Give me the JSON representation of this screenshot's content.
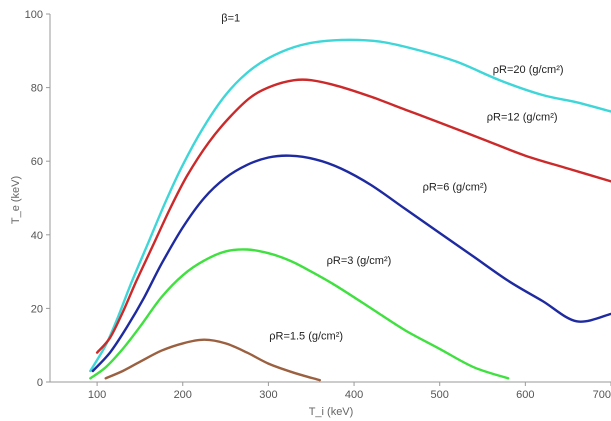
{
  "chart_data": {
    "type": "line",
    "title": "",
    "xlabel": "T_i (keV)",
    "ylabel": "T_e (keV)",
    "xlim": [
      45,
      700
    ],
    "ylim": [
      0,
      100
    ],
    "xticks": [
      100,
      200,
      300,
      400,
      500,
      600,
      700
    ],
    "yticks": [
      0,
      20,
      40,
      60,
      80,
      100
    ],
    "grid": false,
    "legend": "none",
    "annotations": [
      {
        "text": "β=1",
        "x": 245,
        "y": 98
      }
    ],
    "series": [
      {
        "name": "ρR=20 (g/cm²)",
        "color": "#3ed6d8",
        "label_pos": [
          562,
          84
        ],
        "points": [
          [
            92,
            3
          ],
          [
            110,
            10
          ],
          [
            125,
            18
          ],
          [
            140,
            27
          ],
          [
            160,
            38
          ],
          [
            180,
            49
          ],
          [
            200,
            59
          ],
          [
            225,
            69.5
          ],
          [
            250,
            78
          ],
          [
            275,
            84
          ],
          [
            300,
            88
          ],
          [
            330,
            91
          ],
          [
            360,
            92.5
          ],
          [
            395,
            93
          ],
          [
            430,
            92.5
          ],
          [
            470,
            90.5
          ],
          [
            520,
            87
          ],
          [
            570,
            82
          ],
          [
            620,
            78
          ],
          [
            660,
            76
          ],
          [
            700,
            73.5
          ]
        ]
      },
      {
        "name": "ρR=12 (g/cm²)",
        "color": "#cc2a2a",
        "label_pos": [
          555,
          71
        ],
        "points": [
          [
            100,
            8
          ],
          [
            115,
            12
          ],
          [
            130,
            19
          ],
          [
            145,
            27
          ],
          [
            165,
            37
          ],
          [
            185,
            47
          ],
          [
            205,
            56
          ],
          [
            230,
            65
          ],
          [
            255,
            72
          ],
          [
            280,
            77.5
          ],
          [
            305,
            80.5
          ],
          [
            330,
            82
          ],
          [
            350,
            82
          ],
          [
            380,
            80.5
          ],
          [
            420,
            77.5
          ],
          [
            460,
            74
          ],
          [
            500,
            70.5
          ],
          [
            550,
            66
          ],
          [
            600,
            61.5
          ],
          [
            650,
            58
          ],
          [
            700,
            54.5
          ]
        ]
      },
      {
        "name": "ρR=6 (g/cm²)",
        "color": "#1e2aa0",
        "label_pos": [
          480,
          52
        ],
        "points": [
          [
            95,
            3
          ],
          [
            115,
            8
          ],
          [
            135,
            15
          ],
          [
            155,
            23
          ],
          [
            175,
            32
          ],
          [
            200,
            42
          ],
          [
            225,
            50
          ],
          [
            250,
            55.5
          ],
          [
            275,
            59
          ],
          [
            300,
            61
          ],
          [
            325,
            61.5
          ],
          [
            355,
            60.5
          ],
          [
            385,
            58
          ],
          [
            420,
            53.5
          ],
          [
            460,
            47
          ],
          [
            500,
            40.5
          ],
          [
            540,
            34
          ],
          [
            580,
            27.5
          ],
          [
            620,
            22
          ],
          [
            660,
            16.5
          ],
          [
            700,
            18.5
          ]
        ]
      },
      {
        "name": "ρR=3 (g/cm²)",
        "color": "#3fe03f",
        "label_pos": [
          368,
          32
        ],
        "points": [
          [
            92,
            1
          ],
          [
            110,
            4
          ],
          [
            130,
            9
          ],
          [
            150,
            15
          ],
          [
            175,
            23
          ],
          [
            200,
            29
          ],
          [
            225,
            33
          ],
          [
            250,
            35.5
          ],
          [
            275,
            36
          ],
          [
            300,
            35
          ],
          [
            325,
            33
          ],
          [
            350,
            30
          ],
          [
            380,
            26
          ],
          [
            420,
            20
          ],
          [
            460,
            14
          ],
          [
            500,
            9
          ],
          [
            540,
            4
          ],
          [
            580,
            1
          ]
        ]
      },
      {
        "name": "ρR=1.5 (g/cm²)",
        "color": "#9a6040",
        "label_pos": [
          301,
          11.5
        ],
        "points": [
          [
            110,
            1
          ],
          [
            130,
            3
          ],
          [
            150,
            5.5
          ],
          [
            175,
            8.5
          ],
          [
            200,
            10.5
          ],
          [
            225,
            11.5
          ],
          [
            250,
            10.5
          ],
          [
            275,
            8
          ],
          [
            300,
            5
          ],
          [
            330,
            2.5
          ],
          [
            360,
            0.5
          ]
        ]
      }
    ]
  }
}
